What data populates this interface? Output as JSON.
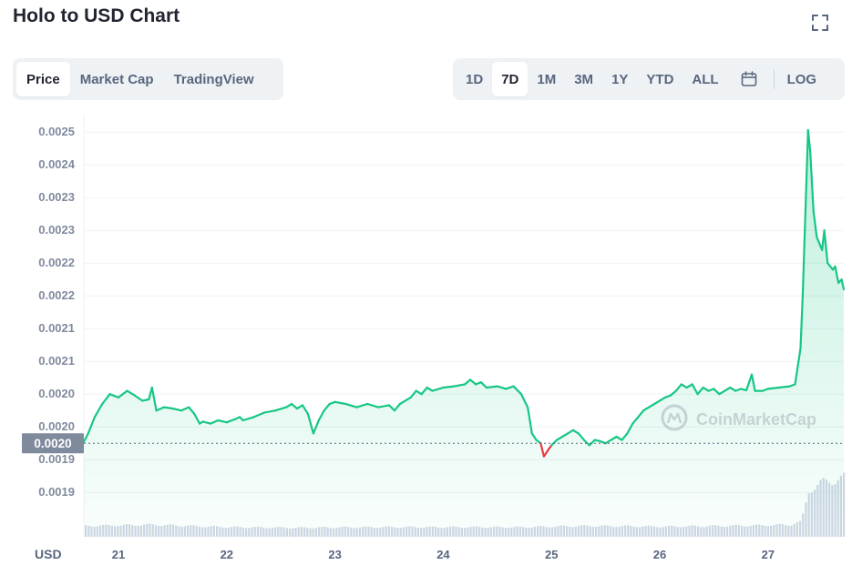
{
  "header": {
    "title": "Holo to USD Chart"
  },
  "icons": {
    "fullscreen": "expand-icon",
    "calendar": "calendar-icon"
  },
  "tabs": [
    {
      "label": "Price",
      "active": true
    },
    {
      "label": "Market Cap",
      "active": false
    },
    {
      "label": "TradingView",
      "active": false
    }
  ],
  "ranges": [
    {
      "label": "1D",
      "active": false
    },
    {
      "label": "7D",
      "active": true
    },
    {
      "label": "1M",
      "active": false
    },
    {
      "label": "3M",
      "active": false
    },
    {
      "label": "1Y",
      "active": false
    },
    {
      "label": "YTD",
      "active": false
    },
    {
      "label": "ALL",
      "active": false
    }
  ],
  "log_label": "LOG",
  "watermark": "CoinMarketCap",
  "colors": {
    "up": "#16c784",
    "down": "#ea3943",
    "grid": "#eff2f5",
    "axis_text": "#808a9d",
    "volume": "#cfd6e4",
    "badge": "#808a9d"
  },
  "chart_data": {
    "type": "area",
    "currency_label": "USD",
    "y_ticks": [
      "0.0025",
      "0.0024",
      "0.0023",
      "0.0023",
      "0.0022",
      "0.0022",
      "0.0021",
      "0.0021",
      "0.0020",
      "0.0020",
      "0.0019",
      "0.0019"
    ],
    "y_tick_values": [
      0.0025,
      0.00245,
      0.0024,
      0.00235,
      0.0023,
      0.00225,
      0.0022,
      0.00215,
      0.0021,
      0.00205,
      0.002,
      0.00195
    ],
    "x_ticks": [
      "21",
      "22",
      "23",
      "24",
      "25",
      "26",
      "27"
    ],
    "x_tick_values": [
      21,
      22,
      23,
      24,
      25,
      26,
      27
    ],
    "x_range": [
      20.68,
      27.7
    ],
    "y_range": [
      0.00191,
      0.00251
    ],
    "baseline_value": 0.002025,
    "baseline_label": "0.0020",
    "series": [
      {
        "values": [
          [
            20.68,
            0.002027
          ],
          [
            20.72,
            0.00204
          ],
          [
            20.78,
            0.002065
          ],
          [
            20.85,
            0.002085
          ],
          [
            20.92,
            0.0021
          ],
          [
            21.0,
            0.002095
          ],
          [
            21.08,
            0.002105
          ],
          [
            21.15,
            0.002098
          ],
          [
            21.22,
            0.00209
          ],
          [
            21.28,
            0.002092
          ],
          [
            21.31,
            0.00211
          ],
          [
            21.35,
            0.002075
          ],
          [
            21.42,
            0.00208
          ],
          [
            21.5,
            0.002078
          ],
          [
            21.58,
            0.002075
          ],
          [
            21.65,
            0.00208
          ],
          [
            21.7,
            0.00207
          ],
          [
            21.75,
            0.002055
          ],
          [
            21.78,
            0.002058
          ],
          [
            21.85,
            0.002055
          ],
          [
            21.92,
            0.00206
          ],
          [
            22.0,
            0.002057
          ],
          [
            22.08,
            0.002062
          ],
          [
            22.12,
            0.002065
          ],
          [
            22.15,
            0.00206
          ],
          [
            22.25,
            0.002065
          ],
          [
            22.35,
            0.002072
          ],
          [
            22.45,
            0.002075
          ],
          [
            22.55,
            0.00208
          ],
          [
            22.6,
            0.002085
          ],
          [
            22.65,
            0.002078
          ],
          [
            22.7,
            0.002083
          ],
          [
            22.75,
            0.00207
          ],
          [
            22.8,
            0.00204
          ],
          [
            22.85,
            0.00206
          ],
          [
            22.9,
            0.002075
          ],
          [
            22.95,
            0.002085
          ],
          [
            23.0,
            0.002088
          ],
          [
            23.1,
            0.002085
          ],
          [
            23.2,
            0.00208
          ],
          [
            23.3,
            0.002085
          ],
          [
            23.4,
            0.00208
          ],
          [
            23.5,
            0.002083
          ],
          [
            23.55,
            0.002075
          ],
          [
            23.6,
            0.002085
          ],
          [
            23.65,
            0.00209
          ],
          [
            23.7,
            0.002095
          ],
          [
            23.75,
            0.002105
          ],
          [
            23.8,
            0.0021
          ],
          [
            23.85,
            0.00211
          ],
          [
            23.9,
            0.002105
          ],
          [
            24.0,
            0.00211
          ],
          [
            24.1,
            0.002112
          ],
          [
            24.2,
            0.002115
          ],
          [
            24.25,
            0.002122
          ],
          [
            24.3,
            0.002115
          ],
          [
            24.35,
            0.002118
          ],
          [
            24.4,
            0.00211
          ],
          [
            24.5,
            0.002112
          ],
          [
            24.58,
            0.002108
          ],
          [
            24.65,
            0.002112
          ],
          [
            24.72,
            0.0021
          ],
          [
            24.78,
            0.00208
          ],
          [
            24.82,
            0.00204
          ],
          [
            24.86,
            0.00203
          ],
          [
            24.9,
            0.002025
          ],
          [
            24.93,
            0.002005
          ],
          [
            24.97,
            0.002015
          ],
          [
            25.0,
            0.002022
          ],
          [
            25.05,
            0.00203
          ],
          [
            25.1,
            0.002035
          ],
          [
            25.15,
            0.00204
          ],
          [
            25.2,
            0.002045
          ],
          [
            25.25,
            0.00204
          ],
          [
            25.3,
            0.00203
          ],
          [
            25.35,
            0.002022
          ],
          [
            25.4,
            0.00203
          ],
          [
            25.45,
            0.002028
          ],
          [
            25.5,
            0.002025
          ],
          [
            25.55,
            0.00203
          ],
          [
            25.6,
            0.002035
          ],
          [
            25.65,
            0.00203
          ],
          [
            25.7,
            0.00204
          ],
          [
            25.75,
            0.002055
          ],
          [
            25.8,
            0.002065
          ],
          [
            25.85,
            0.002075
          ],
          [
            25.9,
            0.00208
          ],
          [
            25.95,
            0.002085
          ],
          [
            26.0,
            0.00209
          ],
          [
            26.05,
            0.002095
          ],
          [
            26.1,
            0.002098
          ],
          [
            26.15,
            0.002105
          ],
          [
            26.2,
            0.002115
          ],
          [
            26.25,
            0.00211
          ],
          [
            26.3,
            0.002115
          ],
          [
            26.35,
            0.0021
          ],
          [
            26.4,
            0.00211
          ],
          [
            26.45,
            0.002105
          ],
          [
            26.5,
            0.002108
          ],
          [
            26.55,
            0.0021
          ],
          [
            26.6,
            0.002105
          ],
          [
            26.65,
            0.00211
          ],
          [
            26.7,
            0.002105
          ],
          [
            26.75,
            0.002108
          ],
          [
            26.8,
            0.002106
          ],
          [
            26.85,
            0.00213
          ],
          [
            26.88,
            0.002105
          ],
          [
            26.95,
            0.002105
          ],
          [
            27.0,
            0.002108
          ],
          [
            27.1,
            0.00211
          ],
          [
            27.2,
            0.002112
          ],
          [
            27.25,
            0.002115
          ],
          [
            27.3,
            0.00217
          ],
          [
            27.32,
            0.00225
          ],
          [
            27.35,
            0.0024
          ],
          [
            27.37,
            0.002503
          ],
          [
            27.39,
            0.00247
          ],
          [
            27.42,
            0.00238
          ],
          [
            27.45,
            0.00234
          ],
          [
            27.5,
            0.00232
          ],
          [
            27.52,
            0.00235
          ],
          [
            27.55,
            0.0023
          ],
          [
            27.6,
            0.00229
          ],
          [
            27.62,
            0.002295
          ],
          [
            27.65,
            0.00227
          ],
          [
            27.68,
            0.002275
          ],
          [
            27.7,
            0.00226
          ]
        ]
      }
    ],
    "volume": [
      {
        "x": 20.68,
        "level": 0.18
      },
      {
        "x": 21.3,
        "level": 0.2
      },
      {
        "x": 22.0,
        "level": 0.16
      },
      {
        "x": 22.6,
        "level": 0.15
      },
      {
        "x": 23.3,
        "level": 0.16
      },
      {
        "x": 24.0,
        "level": 0.16
      },
      {
        "x": 24.7,
        "level": 0.16
      },
      {
        "x": 25.3,
        "level": 0.18
      },
      {
        "x": 26.0,
        "level": 0.17
      },
      {
        "x": 26.6,
        "level": 0.18
      },
      {
        "x": 27.2,
        "level": 0.2
      },
      {
        "x": 27.3,
        "level": 0.25
      },
      {
        "x": 27.37,
        "level": 0.78
      },
      {
        "x": 27.5,
        "level": 0.9
      },
      {
        "x": 27.7,
        "level": 0.98
      }
    ]
  }
}
